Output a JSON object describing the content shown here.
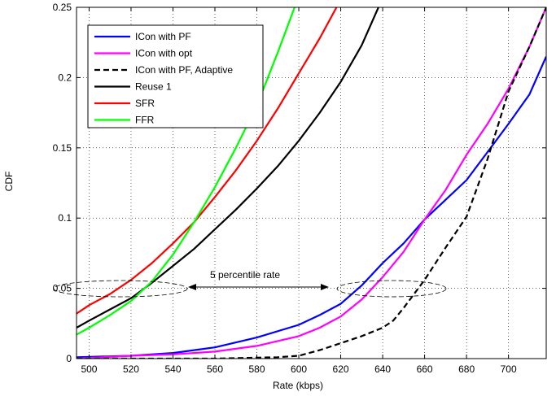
{
  "chart_data": {
    "type": "line",
    "title": "",
    "xlabel": "Rate (kbps)",
    "ylabel": "CDF",
    "xlim": [
      494,
      718
    ],
    "ylim": [
      0,
      0.25
    ],
    "xticks": [
      500,
      520,
      540,
      560,
      580,
      600,
      620,
      640,
      660,
      680,
      700
    ],
    "yticks": [
      0,
      0.05,
      0.1,
      0.15,
      0.2,
      0.25
    ],
    "ytick_labels": [
      "0",
      "0.05",
      "0.1",
      "0.15",
      "0.2",
      "0.25"
    ],
    "grid": true,
    "legend_position": "top-left",
    "annotation": "5 percentile rate",
    "series": [
      {
        "name": "ICon with PF",
        "color": "#0000ff",
        "dash": "solid",
        "x": [
          494,
          520,
          540,
          560,
          580,
          600,
          610,
          620,
          630,
          640,
          650,
          660,
          670,
          680,
          690,
          700,
          710,
          718
        ],
        "y": [
          0.001,
          0.002,
          0.004,
          0.008,
          0.015,
          0.024,
          0.031,
          0.039,
          0.052,
          0.068,
          0.082,
          0.099,
          0.113,
          0.127,
          0.147,
          0.167,
          0.188,
          0.215
        ]
      },
      {
        "name": "ICon with opt",
        "color": "#ff00ff",
        "dash": "solid",
        "x": [
          494,
          520,
          540,
          560,
          580,
          600,
          610,
          620,
          630,
          640,
          650,
          660,
          670,
          680,
          690,
          700,
          710,
          718
        ],
        "y": [
          0.0,
          0.002,
          0.003,
          0.005,
          0.009,
          0.016,
          0.022,
          0.03,
          0.042,
          0.058,
          0.076,
          0.099,
          0.12,
          0.145,
          0.167,
          0.192,
          0.222,
          0.25
        ]
      },
      {
        "name": "ICon with PF, Adaptive",
        "color": "#000000",
        "dash": "dashed",
        "x": [
          494,
          560,
          590,
          600,
          610,
          620,
          630,
          640,
          645,
          650,
          655,
          660,
          670,
          680,
          690,
          700,
          710,
          718
        ],
        "y": [
          0.0,
          0.0,
          0.001,
          0.002,
          0.006,
          0.011,
          0.016,
          0.022,
          0.027,
          0.036,
          0.046,
          0.056,
          0.079,
          0.101,
          0.142,
          0.19,
          0.222,
          0.25
        ]
      },
      {
        "name": "Reuse 1",
        "color": "#000000",
        "dash": "solid",
        "x": [
          494,
          500,
          510,
          520,
          530,
          540,
          550,
          560,
          570,
          580,
          590,
          600,
          610,
          620,
          630,
          638
        ],
        "y": [
          0.022,
          0.027,
          0.035,
          0.043,
          0.054,
          0.066,
          0.078,
          0.092,
          0.106,
          0.121,
          0.137,
          0.155,
          0.175,
          0.197,
          0.223,
          0.25
        ]
      },
      {
        "name": "SFR",
        "color": "#ff0000",
        "dash": "solid",
        "x": [
          494,
          500,
          510,
          520,
          530,
          540,
          550,
          560,
          570,
          580,
          590,
          600,
          610,
          618
        ],
        "y": [
          0.032,
          0.038,
          0.046,
          0.056,
          0.068,
          0.082,
          0.097,
          0.115,
          0.134,
          0.155,
          0.178,
          0.203,
          0.228,
          0.25
        ]
      },
      {
        "name": "FFR",
        "color": "#00ff00",
        "dash": "solid",
        "x": [
          494,
          500,
          510,
          520,
          530,
          540,
          550,
          560,
          570,
          580,
          590,
          598
        ],
        "y": [
          0.017,
          0.022,
          0.031,
          0.041,
          0.055,
          0.074,
          0.097,
          0.122,
          0.15,
          0.18,
          0.218,
          0.25
        ]
      }
    ]
  }
}
